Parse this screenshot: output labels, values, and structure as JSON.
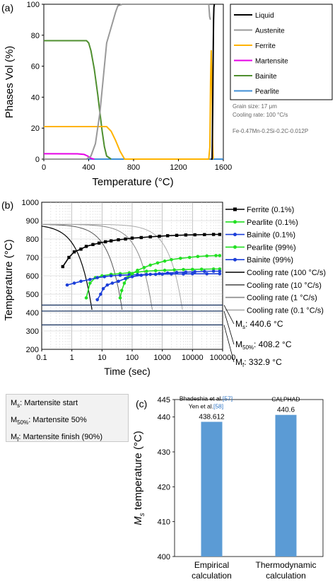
{
  "colors": {
    "liquid": "#000000",
    "austenite": "#999999",
    "ferrite": "#ffb300",
    "martensite": "#e600e6",
    "bainite": "#4f8f2f",
    "pearlite": "#3f8fd6",
    "ferrite_ttt": "#000000",
    "pearlite_ttt": "#23e023",
    "bainite_ttt": "#1c3fd9",
    "bar": "#5b9bd5"
  },
  "chart_data": [
    {
      "panel": "(a)",
      "type": "line",
      "xlabel": "Temperature (°C)",
      "ylabel": "Phases Vol (%)",
      "xlim": [
        0,
        1600
      ],
      "ylim": [
        0,
        100
      ],
      "xticks": [
        "0",
        "400",
        "800",
        "1200",
        "1600"
      ],
      "yticks": [
        "0",
        "20",
        "40",
        "60",
        "80",
        "100"
      ],
      "legend_position": "right",
      "legend": [
        "Liquid",
        "Austenite",
        "Ferrite",
        "Martensite",
        "Bainite",
        "Pearlite"
      ],
      "annotations": [
        "Grain size: 17 μm",
        "Cooling rate: 100 °C/s",
        "Fe-0.47Mn-0.2Si-0.2C-0.012P"
      ],
      "series": [
        {
          "name": "Liquid",
          "color_key": "liquid",
          "x": [
            1490,
            1500,
            1505,
            1510,
            1513,
            1516,
            1520
          ],
          "y": [
            0,
            0,
            30,
            70,
            90,
            98,
            100
          ]
        },
        {
          "name": "Austenite",
          "color_key": "austenite",
          "x": [
            0,
            380,
            420,
            460,
            500,
            540,
            560,
            600,
            640,
            660,
            700,
            1460,
            1470,
            1478,
            1485
          ],
          "y": [
            0,
            0,
            2,
            10,
            30,
            60,
            75,
            85,
            95,
            99,
            100,
            100,
            100,
            92,
            90
          ]
        },
        {
          "name": "Ferrite",
          "color_key": "ferrite",
          "x": [
            0,
            540,
            560,
            600,
            640,
            680,
            720,
            1470,
            1480,
            1486,
            1492,
            1498,
            1505,
            1510
          ],
          "y": [
            21,
            21,
            21,
            18,
            12,
            5,
            0,
            0,
            8,
            50,
            70,
            50,
            10,
            0
          ]
        },
        {
          "name": "Martensite",
          "color_key": "martensite",
          "x": [
            0,
            300,
            360,
            390,
            410,
            430,
            450
          ],
          "y": [
            3.5,
            3.4,
            3,
            2,
            1,
            0.3,
            0
          ]
        },
        {
          "name": "Bainite",
          "color_key": "bainite",
          "x": [
            0,
            380,
            400,
            420,
            450,
            480,
            500,
            520,
            540,
            560,
            600
          ],
          "y": [
            76.5,
            76.5,
            75,
            70,
            58,
            42,
            30,
            18,
            8,
            2,
            0
          ]
        },
        {
          "name": "Pearlite",
          "color_key": "pearlite",
          "x": [
            0,
            1600
          ],
          "y": [
            0,
            0
          ]
        }
      ]
    },
    {
      "panel": "(b)",
      "type": "line",
      "xscale": "log",
      "xlabel": "Time (sec)",
      "ylabel": "Temperature (°C)",
      "xlim": [
        0.1,
        100000
      ],
      "ylim": [
        200,
        1000
      ],
      "xticks": [
        "0.1",
        "1",
        "10",
        "100",
        "1000",
        "10000",
        "100000"
      ],
      "yticks": [
        "200",
        "300",
        "400",
        "500",
        "600",
        "700",
        "800",
        "900",
        "1000"
      ],
      "legend_position": "right",
      "legend": [
        "Ferrite (0.1%)",
        "Pearlite (0.1%)",
        "Bainite (0.1%)",
        "Pearlite (99%)",
        "Bainite (99%)",
        "Cooling rate (100 °C/s)",
        "Cooling rate (10 °C/s)",
        "Cooling rate (1 °C/s)",
        "Cooling rate (0.1 °C/s)"
      ],
      "transformation_curves": [
        {
          "name": "Ferrite (0.1%)",
          "color_key": "ferrite_ttt",
          "marker": "square",
          "x": [
            0.5,
            0.8,
            1.2,
            2,
            3,
            5,
            8,
            13,
            20,
            35,
            60,
            100,
            200,
            400,
            800,
            1500,
            3000,
            6000,
            12000,
            25000,
            50000,
            80000
          ],
          "y": [
            650,
            700,
            730,
            745,
            760,
            770,
            778,
            785,
            790,
            796,
            800,
            805,
            808,
            812,
            815,
            818,
            820,
            822,
            823,
            824,
            825,
            825
          ]
        },
        {
          "name": "Pearlite (0.1%)",
          "color_key": "pearlite_ttt",
          "marker": "circle",
          "x": [
            3,
            4,
            6,
            10,
            20,
            40,
            80,
            150,
            300,
            600,
            1200,
            2500,
            5000,
            10000,
            20000,
            50000,
            80000
          ],
          "y": [
            480,
            560,
            590,
            600,
            608,
            612,
            616,
            620,
            625,
            628,
            630,
            632,
            634,
            635,
            636,
            637,
            637
          ]
        },
        {
          "name": "Bainite (0.1%)",
          "color_key": "bainite_ttt",
          "marker": "circle",
          "x": [
            0.7,
            1.2,
            2,
            4,
            7,
            12,
            20,
            40,
            80,
            150,
            300,
            600,
            1000,
            2000,
            5000,
            10000,
            30000,
            80000
          ],
          "y": [
            550,
            560,
            570,
            580,
            590,
            595,
            600,
            603,
            605,
            606,
            607,
            608,
            609,
            610,
            610,
            611,
            611,
            611
          ]
        },
        {
          "name": "Pearlite (99%)",
          "color_key": "pearlite_ttt",
          "marker": "circle",
          "x": [
            40,
            45,
            55,
            70,
            100,
            150,
            250,
            400,
            700,
            1200,
            2000,
            4000,
            8000,
            15000,
            30000,
            60000,
            80000
          ],
          "y": [
            480,
            520,
            560,
            590,
            610,
            630,
            645,
            658,
            670,
            680,
            688,
            695,
            700,
            705,
            708,
            710,
            710
          ]
        },
        {
          "name": "Bainite (99%)",
          "color_key": "bainite_ttt",
          "marker": "circle",
          "x": [
            7,
            9,
            11,
            15,
            22,
            35,
            60,
            100,
            200,
            400,
            800,
            1500,
            3000,
            6000,
            12000,
            25000,
            50000,
            80000
          ],
          "y": [
            470,
            500,
            530,
            550,
            560,
            570,
            585,
            595,
            603,
            608,
            612,
            615,
            618,
            620,
            622,
            624,
            625,
            625
          ]
        }
      ],
      "cooling_curves": [
        {
          "name": "Cooling rate (100 °C/s)",
          "rate": 100
        },
        {
          "name": "Cooling rate (10 °C/s)",
          "rate": 10
        },
        {
          "name": "Cooling rate (1 °C/s)",
          "rate": 1
        },
        {
          "name": "Cooling rate (0.1 °C/s)",
          "rate": 0.1
        }
      ],
      "cooling_start_temperature": 880,
      "horizontal_lines": [
        {
          "symbol": "M",
          "subscript": "s",
          "label": ": 440.6 °C",
          "value": 440.6
        },
        {
          "symbol": "M",
          "subscript": "50%",
          "label": ": 408.2 °C",
          "value": 408.2
        },
        {
          "symbol": "M",
          "subscript": "f",
          "label": ": 332.9 °C",
          "value": 332.9
        }
      ]
    },
    {
      "panel": "(c)",
      "type": "bar",
      "categories": [
        "Empirical calculation",
        "Thermodynamic calculation"
      ],
      "category_lines": [
        [
          "Empirical",
          "calculation"
        ],
        [
          "Thermodynamic",
          "calculation"
        ]
      ],
      "values": [
        438.612,
        440.6
      ],
      "value_labels": [
        "438.612",
        "440.6"
      ],
      "ylabel_symbol": "M",
      "ylabel_subscript": "s",
      "ylabel_rest": " temperature (°C)",
      "ylim": [
        400,
        445
      ],
      "yticks": [
        "400",
        "410",
        "420",
        "430",
        "440",
        "445"
      ],
      "bar_annotations": [
        {
          "lines": [
            "Bhadeshia et al.",
            "Yen et al."
          ],
          "refs": [
            "[57]",
            "[58]"
          ]
        },
        {
          "lines": [
            "CALPHAD"
          ],
          "refs": []
        }
      ]
    }
  ],
  "panel_labels": [
    "(a)",
    "(b)",
    "(c)"
  ],
  "note_box": [
    {
      "symbol": "M",
      "subscript": "s",
      "text": ": Martensite start"
    },
    {
      "symbol": "M",
      "subscript": "50%",
      "text": ": Martensite 50%"
    },
    {
      "symbol": "M",
      "subscript": "f",
      "text": ": Martensite finish (90%)"
    }
  ]
}
